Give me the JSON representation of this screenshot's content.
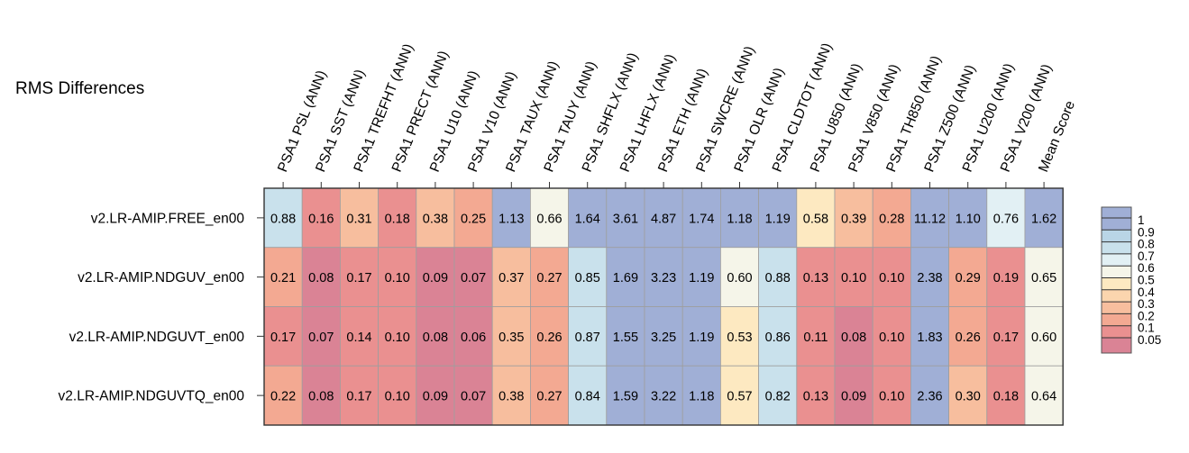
{
  "chart_data": {
    "type": "heatmap",
    "title": "RMS Differences",
    "columns": [
      "PSA1 PSL (ANN)",
      "PSA1 SST (ANN)",
      "PSA1 TREFHT (ANN)",
      "PSA1 PRECT (ANN)",
      "PSA1 U10 (ANN)",
      "PSA1 V10 (ANN)",
      "PSA1 TAUX (ANN)",
      "PSA1 TAUY (ANN)",
      "PSA1 SHFLX (ANN)",
      "PSA1 LHFLX (ANN)",
      "PSA1 ETH (ANN)",
      "PSA1 SWCRE (ANN)",
      "PSA1 OLR (ANN)",
      "PSA1 CLDTOT (ANN)",
      "PSA1 U850 (ANN)",
      "PSA1 V850 (ANN)",
      "PSA1 TH850 (ANN)",
      "PSA1 Z500 (ANN)",
      "PSA1 U200 (ANN)",
      "PSA1 V200 (ANN)",
      "Mean Score"
    ],
    "rows": [
      "v2.LR-AMIP.FREE_en00",
      "v2.LR-AMIP.NDGUV_en00",
      "v2.LR-AMIP.NDGUVT_en00",
      "v2.LR-AMIP.NDGUVTQ_en00"
    ],
    "values": [
      [
        "0.88",
        "0.16",
        "0.31",
        "0.18",
        "0.38",
        "0.25",
        "1.13",
        "0.66",
        "1.64",
        "3.61",
        "4.87",
        "1.74",
        "1.18",
        "1.19",
        "0.58",
        "0.39",
        "0.28",
        "11.12",
        "1.10",
        "0.76",
        "1.62"
      ],
      [
        "0.21",
        "0.08",
        "0.17",
        "0.10",
        "0.09",
        "0.07",
        "0.37",
        "0.27",
        "0.85",
        "1.69",
        "3.23",
        "1.19",
        "0.60",
        "0.88",
        "0.13",
        "0.10",
        "0.10",
        "2.38",
        "0.29",
        "0.19",
        "0.65"
      ],
      [
        "0.17",
        "0.07",
        "0.14",
        "0.10",
        "0.08",
        "0.06",
        "0.35",
        "0.26",
        "0.87",
        "1.55",
        "3.25",
        "1.19",
        "0.53",
        "0.86",
        "0.11",
        "0.08",
        "0.10",
        "1.83",
        "0.26",
        "0.17",
        "0.60"
      ],
      [
        "0.22",
        "0.08",
        "0.17",
        "0.10",
        "0.09",
        "0.07",
        "0.38",
        "0.27",
        "0.84",
        "1.59",
        "3.22",
        "1.18",
        "0.57",
        "0.82",
        "0.13",
        "0.09",
        "0.10",
        "2.36",
        "0.30",
        "0.18",
        "0.64"
      ]
    ],
    "colorbar": {
      "labels": [
        "1",
        "0.9",
        "0.8",
        "0.7",
        "0.6",
        "0.5",
        "0.4",
        "0.3",
        "0.2",
        "0.1",
        "0.05"
      ],
      "colors": [
        "#a0afd6",
        "#b9d5e6",
        "#c9e1ec",
        "#e2f0f4",
        "#f5f5e9",
        "#fde9c1",
        "#fbd5ae",
        "#f7be9e",
        "#f3a992",
        "#ea9090",
        "#da8395"
      ]
    }
  }
}
